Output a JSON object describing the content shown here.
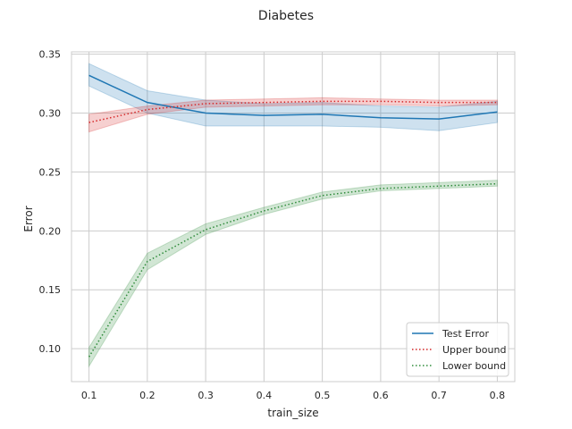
{
  "chart_data": {
    "type": "line",
    "title": "Diabetes",
    "xlabel": "train_size",
    "ylabel": "Error",
    "xlim": [
      0.07,
      0.83
    ],
    "ylim": [
      0.072,
      0.352
    ],
    "x": [
      0.1,
      0.2,
      0.3,
      0.4,
      0.5,
      0.6,
      0.7,
      0.8
    ],
    "xticks": [
      "0.1",
      "0.2",
      "0.3",
      "0.4",
      "0.5",
      "0.6",
      "0.7",
      "0.8"
    ],
    "yticks": [
      "0.10",
      "0.15",
      "0.20",
      "0.25",
      "0.30",
      "0.35"
    ],
    "grid": true,
    "legend_position": "lower-right",
    "series": [
      {
        "name": "Test Error",
        "color": "#1f77b4",
        "style": "solid",
        "values": [
          0.332,
          0.309,
          0.3,
          0.298,
          0.299,
          0.296,
          0.295,
          0.301
        ],
        "lower": [
          0.323,
          0.3,
          0.289,
          0.289,
          0.289,
          0.288,
          0.285,
          0.292
        ],
        "upper": [
          0.342,
          0.319,
          0.311,
          0.308,
          0.309,
          0.306,
          0.305,
          0.31
        ]
      },
      {
        "name": "Upper bound",
        "color": "#d62728",
        "style": "dotted",
        "values": [
          0.292,
          0.303,
          0.308,
          0.309,
          0.31,
          0.31,
          0.309,
          0.309
        ],
        "lower": [
          0.284,
          0.299,
          0.305,
          0.306,
          0.307,
          0.307,
          0.306,
          0.307
        ],
        "upper": [
          0.299,
          0.306,
          0.311,
          0.312,
          0.313,
          0.312,
          0.311,
          0.311
        ]
      },
      {
        "name": "Lower bound",
        "color": "#2e8b3a",
        "style": "dotted",
        "values": [
          0.093,
          0.174,
          0.201,
          0.217,
          0.23,
          0.236,
          0.238,
          0.24
        ],
        "lower": [
          0.085,
          0.167,
          0.197,
          0.214,
          0.227,
          0.234,
          0.236,
          0.238
        ],
        "upper": [
          0.101,
          0.181,
          0.206,
          0.22,
          0.233,
          0.239,
          0.241,
          0.243
        ]
      }
    ]
  }
}
